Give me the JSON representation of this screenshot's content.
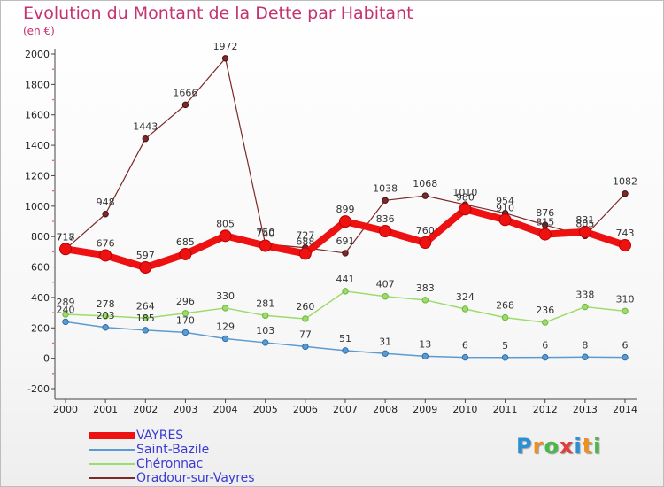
{
  "title": "Evolution du Montant de la Dette par Habitant",
  "subtitle": "(en €)",
  "logo": {
    "text": "Proxiti",
    "colors": [
      "#2b8fd6",
      "#ef8f1f",
      "#49b84a",
      "#e23c3c",
      "#2b8fd6",
      "#ef8f1f",
      "#49b84a"
    ]
  },
  "chart_data": {
    "type": "line",
    "x": [
      2000,
      2001,
      2002,
      2003,
      2004,
      2005,
      2006,
      2007,
      2008,
      2009,
      2010,
      2011,
      2012,
      2013,
      2014
    ],
    "ylim": [
      -200,
      2000
    ],
    "yticks": [
      -200,
      0,
      200,
      400,
      600,
      800,
      1000,
      1200,
      1400,
      1600,
      1800,
      2000
    ],
    "grid": false,
    "legend_position": "bottom-left",
    "series": [
      {
        "name": "VAYRES",
        "color": "#ee1111",
        "values": [
          718,
          676,
          597,
          685,
          805,
          740,
          688,
          899,
          836,
          760,
          980,
          910,
          815,
          831,
          743
        ]
      },
      {
        "name": "Saint-Bazile",
        "color": "#5b9ad2",
        "values": [
          240,
          203,
          185,
          170,
          129,
          103,
          77,
          51,
          31,
          13,
          6,
          5,
          6,
          8,
          6
        ]
      },
      {
        "name": "Chéronnac",
        "color": "#9bdc6a",
        "values": [
          289,
          278,
          264,
          296,
          330,
          281,
          260,
          441,
          407,
          383,
          324,
          268,
          236,
          338,
          310
        ]
      },
      {
        "name": "Oradour-sur-Vayres",
        "color": "#7a2a2a",
        "values": [
          717,
          948,
          1443,
          1666,
          1972,
          750,
          727,
          691,
          1038,
          1068,
          1010,
          954,
          876,
          805,
          1082
        ]
      }
    ]
  }
}
